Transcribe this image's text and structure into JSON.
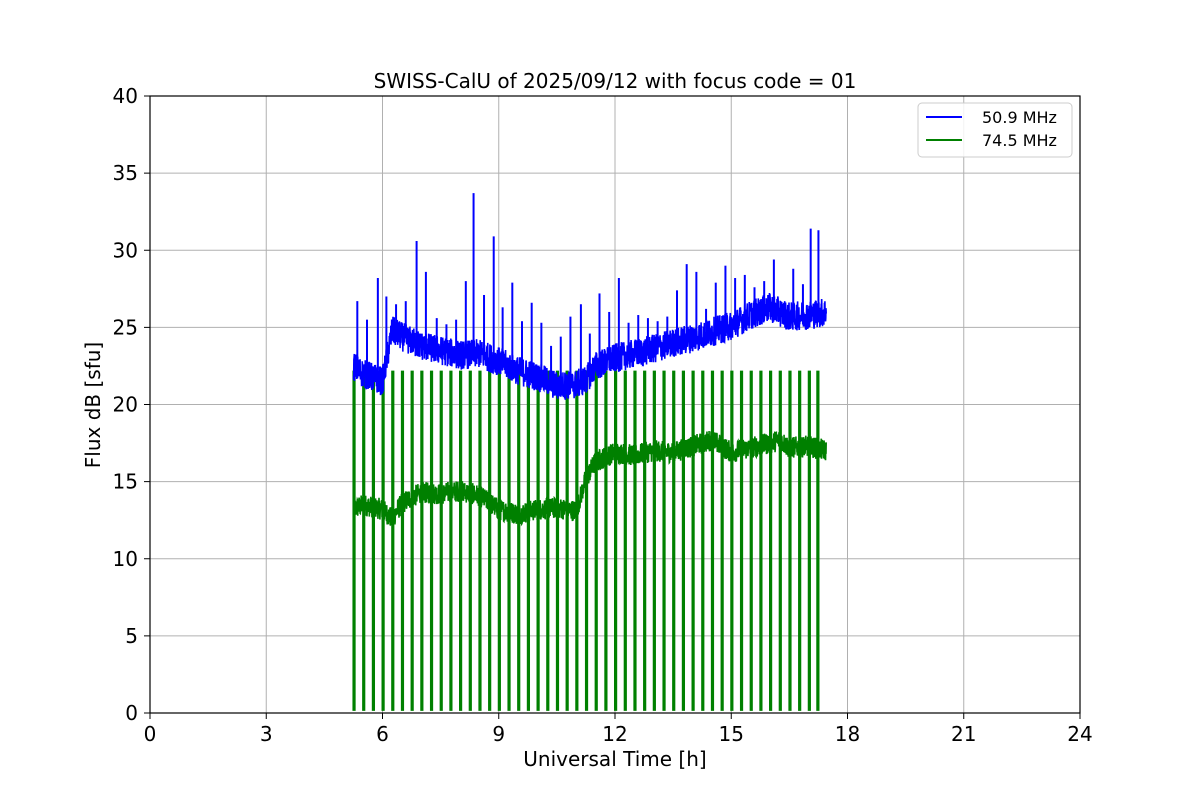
{
  "chart_data": {
    "type": "line",
    "title": "SWISS-CalU of 2025/09/12 with focus code = 01",
    "xlabel": "Universal Time [h]",
    "ylabel": "Flux dB [sfu]",
    "xlim": [
      0,
      24
    ],
    "ylim": [
      0,
      40
    ],
    "xticks": [
      0,
      3,
      6,
      9,
      12,
      15,
      18,
      21,
      24
    ],
    "yticks": [
      0,
      5,
      10,
      15,
      20,
      25,
      30,
      35,
      40
    ],
    "grid": true,
    "legend_position": "top-right",
    "series": [
      {
        "name": "50.9 MHz",
        "color": "#0000ff",
        "x": [
          5.25,
          5.5,
          6.0,
          6.25,
          6.5,
          7.0,
          7.5,
          8.0,
          8.5,
          9.0,
          9.5,
          10.0,
          10.5,
          11.0,
          11.25,
          11.5,
          12.0,
          12.5,
          13.0,
          13.5,
          14.0,
          14.5,
          15.0,
          15.5,
          16.0,
          16.25,
          16.5,
          17.0,
          17.45
        ],
        "values": [
          22.5,
          22.0,
          21.5,
          24.8,
          24.4,
          23.8,
          23.5,
          23.2,
          23.3,
          22.8,
          22.2,
          21.8,
          21.2,
          21.3,
          21.6,
          22.5,
          23.0,
          23.3,
          23.6,
          24.0,
          24.3,
          24.7,
          25.1,
          25.8,
          26.3,
          26.0,
          25.7,
          25.8,
          26.0
        ],
        "spikes": [
          {
            "x": 5.35,
            "y": 26.7
          },
          {
            "x": 5.6,
            "y": 25.5
          },
          {
            "x": 5.88,
            "y": 28.2
          },
          {
            "x": 6.1,
            "y": 27.0
          },
          {
            "x": 6.35,
            "y": 26.5
          },
          {
            "x": 6.6,
            "y": 26.7
          },
          {
            "x": 6.88,
            "y": 30.6
          },
          {
            "x": 7.12,
            "y": 28.6
          },
          {
            "x": 7.4,
            "y": 25.6
          },
          {
            "x": 7.65,
            "y": 25.2
          },
          {
            "x": 7.9,
            "y": 25.5
          },
          {
            "x": 8.15,
            "y": 28.0
          },
          {
            "x": 8.35,
            "y": 33.7
          },
          {
            "x": 8.62,
            "y": 27.1
          },
          {
            "x": 8.87,
            "y": 30.9
          },
          {
            "x": 9.1,
            "y": 26.3
          },
          {
            "x": 9.35,
            "y": 27.9
          },
          {
            "x": 9.6,
            "y": 25.4
          },
          {
            "x": 9.85,
            "y": 26.6
          },
          {
            "x": 10.1,
            "y": 25.3
          },
          {
            "x": 10.35,
            "y": 23.8
          },
          {
            "x": 10.6,
            "y": 24.4
          },
          {
            "x": 10.85,
            "y": 25.7
          },
          {
            "x": 11.12,
            "y": 26.5
          },
          {
            "x": 11.35,
            "y": 24.6
          },
          {
            "x": 11.6,
            "y": 27.2
          },
          {
            "x": 11.85,
            "y": 26.0
          },
          {
            "x": 12.1,
            "y": 28.2
          },
          {
            "x": 12.35,
            "y": 25.3
          },
          {
            "x": 12.6,
            "y": 25.8
          },
          {
            "x": 12.85,
            "y": 25.6
          },
          {
            "x": 13.1,
            "y": 25.4
          },
          {
            "x": 13.35,
            "y": 25.7
          },
          {
            "x": 13.6,
            "y": 27.4
          },
          {
            "x": 13.85,
            "y": 29.1
          },
          {
            "x": 14.1,
            "y": 28.6
          },
          {
            "x": 14.35,
            "y": 26.2
          },
          {
            "x": 14.6,
            "y": 27.9
          },
          {
            "x": 14.85,
            "y": 29.0
          },
          {
            "x": 15.1,
            "y": 28.2
          },
          {
            "x": 15.35,
            "y": 28.4
          },
          {
            "x": 15.6,
            "y": 27.6
          },
          {
            "x": 15.85,
            "y": 28.0
          },
          {
            "x": 16.1,
            "y": 29.4
          },
          {
            "x": 16.35,
            "y": 26.5
          },
          {
            "x": 16.6,
            "y": 28.8
          },
          {
            "x": 16.85,
            "y": 27.8
          },
          {
            "x": 17.05,
            "y": 31.4
          },
          {
            "x": 17.25,
            "y": 31.3
          }
        ]
      },
      {
        "name": "74.5 MHz",
        "color": "#008000",
        "x": [
          5.25,
          5.5,
          6.0,
          6.25,
          6.5,
          7.0,
          7.5,
          8.0,
          8.5,
          9.0,
          9.5,
          10.0,
          10.5,
          11.0,
          11.25,
          11.5,
          12.0,
          12.5,
          13.0,
          13.5,
          14.0,
          14.5,
          15.0,
          15.5,
          16.0,
          16.25,
          16.5,
          17.0,
          17.45
        ],
        "values": [
          13.2,
          13.5,
          13.2,
          12.6,
          13.6,
          14.3,
          14.2,
          14.4,
          14.1,
          13.2,
          12.9,
          13.2,
          13.3,
          13.1,
          15.2,
          16.3,
          16.9,
          16.7,
          17.0,
          16.9,
          17.3,
          17.7,
          16.9,
          17.2,
          17.5,
          17.7,
          17.2,
          17.3,
          17.0
        ],
        "spike_low": 0.2,
        "spike_high": 22.2,
        "spike_x": [
          5.25,
          5.5,
          5.75,
          6.0,
          6.25,
          6.5,
          6.75,
          7.0,
          7.25,
          7.5,
          7.75,
          8.0,
          8.25,
          8.5,
          8.75,
          9.0,
          9.25,
          9.5,
          9.75,
          10.0,
          10.25,
          10.5,
          10.75,
          11.0,
          11.25,
          11.5,
          11.75,
          12.0,
          12.25,
          12.5,
          12.75,
          13.0,
          13.25,
          13.5,
          13.75,
          14.0,
          14.25,
          14.5,
          14.75,
          15.0,
          15.25,
          15.5,
          15.75,
          16.0,
          16.25,
          16.5,
          16.75,
          17.0,
          17.22
        ]
      }
    ]
  }
}
